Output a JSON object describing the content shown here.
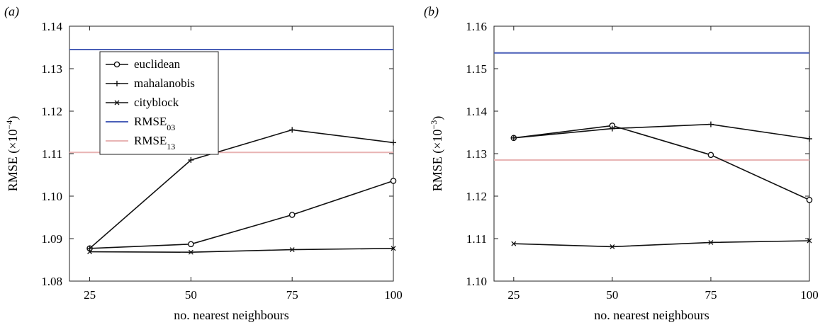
{
  "chart_data": [
    {
      "panel_label": "(a)",
      "type": "line",
      "xlabel": "no. nearest neighbours",
      "ylabel_base": "RMSE (×10",
      "ylabel_exp": "−4",
      "ylabel_tail": ")",
      "x": [
        25,
        50,
        75,
        100
      ],
      "xlim": [
        20,
        100
      ],
      "ylim": [
        1.08,
        1.14
      ],
      "xticks": [
        "25",
        "50",
        "75",
        "100"
      ],
      "yticks": [
        "1.08",
        "1.09",
        "1.10",
        "1.11",
        "1.12",
        "1.13",
        "1.14"
      ],
      "series": [
        {
          "name": "euclidean",
          "marker": "circle",
          "color": "#111111",
          "values": [
            1.0877,
            1.0887,
            1.0956,
            1.1036
          ]
        },
        {
          "name": "mahalanobis",
          "marker": "plus",
          "color": "#111111",
          "values": [
            1.0877,
            1.1085,
            1.1156,
            1.1126
          ]
        },
        {
          "name": "cityblock",
          "marker": "x",
          "color": "#111111",
          "values": [
            1.0869,
            1.0868,
            1.0874,
            1.0877
          ]
        }
      ],
      "reference_lines": [
        {
          "name": "RMSE",
          "subscript": "03",
          "color": "#4a5fb8",
          "value": 1.1345
        },
        {
          "name": "RMSE",
          "subscript": "13",
          "color": "#e8b4b4",
          "value": 1.1103
        }
      ],
      "legend_position": "top-left"
    },
    {
      "panel_label": "(b)",
      "type": "line",
      "xlabel": "no. nearest neighbours",
      "ylabel_base": "RMSE (×10",
      "ylabel_exp": "−3",
      "ylabel_tail": ")",
      "x": [
        25,
        50,
        75,
        100
      ],
      "xlim": [
        20,
        100
      ],
      "ylim": [
        1.1,
        1.16
      ],
      "xticks": [
        "25",
        "50",
        "75",
        "100"
      ],
      "yticks": [
        "1.10",
        "1.11",
        "1.12",
        "1.13",
        "1.14",
        "1.15",
        "1.16"
      ],
      "series": [
        {
          "name": "euclidean",
          "marker": "circle",
          "color": "#111111",
          "values": [
            1.1337,
            1.1366,
            1.1297,
            1.1191
          ]
        },
        {
          "name": "mahalanobis",
          "marker": "plus",
          "color": "#111111",
          "values": [
            1.1337,
            1.1359,
            1.1369,
            1.1335
          ]
        },
        {
          "name": "cityblock",
          "marker": "x",
          "color": "#111111",
          "values": [
            1.1088,
            1.1081,
            1.1091,
            1.1095
          ]
        }
      ],
      "reference_lines": [
        {
          "name": "RMSE",
          "subscript": "03",
          "color": "#4a5fb8",
          "value": 1.1537
        },
        {
          "name": "RMSE",
          "subscript": "13",
          "color": "#e8b4b4",
          "value": 1.1285
        }
      ]
    }
  ]
}
